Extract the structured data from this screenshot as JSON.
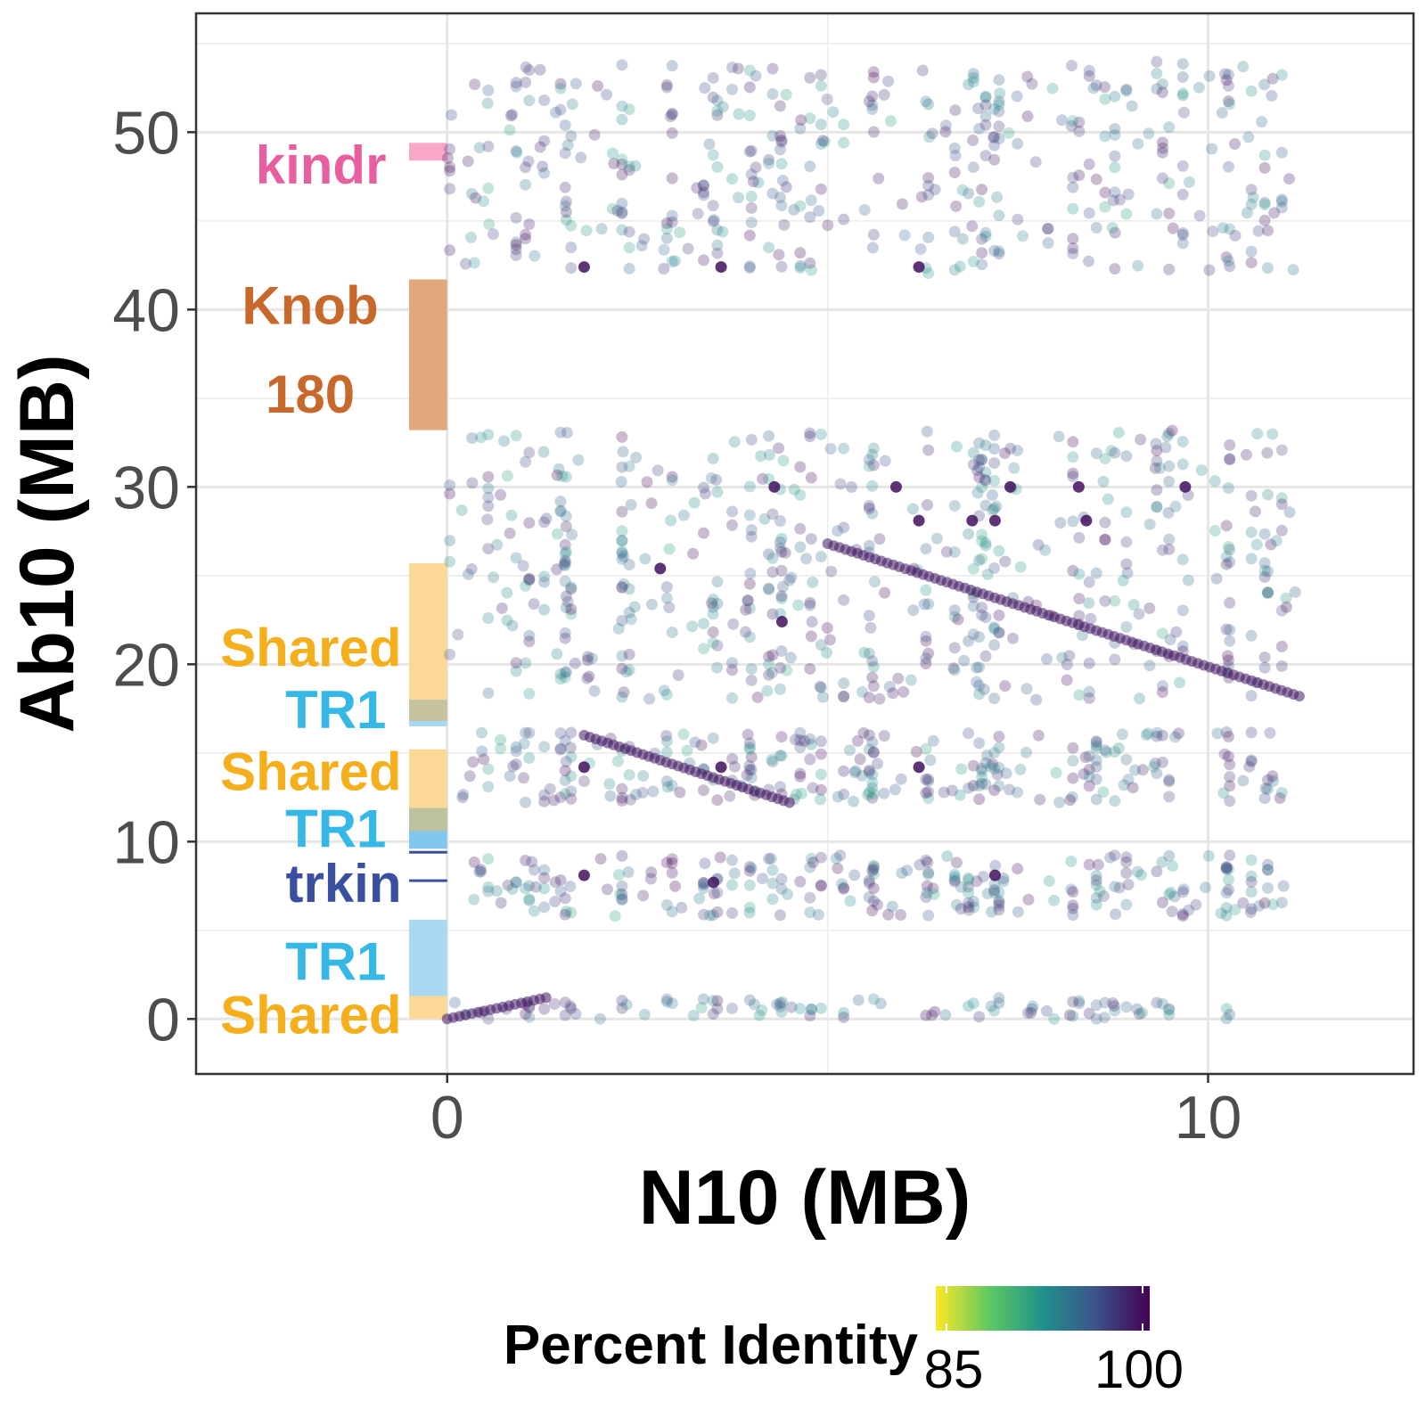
{
  "chart_data": {
    "type": "scatter",
    "title": "",
    "xlabel": "N10 (MB)",
    "ylabel": "Ab10 (MB)",
    "xlim": [
      -3.3,
      12.7
    ],
    "ylim": [
      -3.1,
      56.7
    ],
    "x_ticks": [
      0,
      10
    ],
    "x_tick_labels": [
      "0",
      "10"
    ],
    "y_ticks": [
      0,
      10,
      20,
      30,
      40,
      50
    ],
    "y_tick_labels": [
      "0",
      "10",
      "20",
      "30",
      "40",
      "50"
    ],
    "grid": true,
    "point_alpha": 0.28,
    "regions": [
      {
        "label": "kindr",
        "ymin": 48.4,
        "ymax": 49.4,
        "color": "#f7a8c8",
        "label_color": "#e85fa0"
      },
      {
        "label": "Knob 180",
        "label_lines": [
          "Knob",
          "180"
        ],
        "ymin": 33.2,
        "ymax": 41.7,
        "color": "#e3a77d",
        "label_color": "#c8692b"
      },
      {
        "label": "Shared",
        "ymin": 18.0,
        "ymax": 25.7,
        "color": "#fbd896",
        "label_color": "#f5ae1c"
      },
      {
        "label": "TR1",
        "ymin": 16.5,
        "ymax": 18.0,
        "color": "#a9d8f3",
        "label_color": "#35b8e6",
        "overlap_top": 1.2
      },
      {
        "label": "Shared",
        "ymin": 10.6,
        "ymax": 15.2,
        "color": "#fbd896",
        "label_color": "#f5ae1c"
      },
      {
        "label": "TR1",
        "ymin": 9.6,
        "ymax": 11.9,
        "color": "#80c8ee",
        "label_color": "#35b8e6",
        "overlap_top": 1.3
      },
      {
        "label": "trkin",
        "ymin": 7.8,
        "ymax": 9.4,
        "color": "#3a4f9f",
        "label_color": "#3a4f9f",
        "style": "lines"
      },
      {
        "label": "TR1",
        "ymin": 1.3,
        "ymax": 5.6,
        "color": "#a9d8f3",
        "label_color": "#35b8e6"
      },
      {
        "label": "Shared",
        "ymin": 0.0,
        "ymax": 1.3,
        "color": "#fbd896",
        "label_color": "#f5ae1c"
      }
    ],
    "clouds": [
      {
        "ymin": 42.0,
        "ymax": 54.0,
        "xmin": 0.0,
        "xmax": 11.2,
        "count": 430
      },
      {
        "ymin": 18.0,
        "ymax": 33.2,
        "xmin": 0.0,
        "xmax": 11.2,
        "count": 560
      },
      {
        "ymin": 12.2,
        "ymax": 16.2,
        "xmin": 0.2,
        "xmax": 11.1,
        "count": 270
      },
      {
        "ymin": 5.8,
        "ymax": 9.3,
        "xmin": 0.2,
        "xmax": 11.1,
        "count": 250
      },
      {
        "ymin": 0.0,
        "ymax": 1.2,
        "xmin": 0.0,
        "xmax": 10.5,
        "count": 95
      }
    ],
    "alignment_lines": [
      {
        "x": [
          0.0,
          1.3
        ],
        "y": [
          0.0,
          1.2
        ],
        "identity": 99.5
      },
      {
        "x": [
          1.8,
          4.5
        ],
        "y": [
          16.0,
          12.2
        ],
        "identity": 99.5
      },
      {
        "x": [
          5.0,
          11.2
        ],
        "y": [
          26.8,
          18.2
        ],
        "identity": 99.5
      }
    ],
    "highlight_points": [
      {
        "x": 1.8,
        "y": 42.4
      },
      {
        "x": 3.6,
        "y": 42.4
      },
      {
        "x": 6.2,
        "y": 42.4
      },
      {
        "x": 4.3,
        "y": 30.0
      },
      {
        "x": 5.9,
        "y": 30.0
      },
      {
        "x": 7.4,
        "y": 30.0
      },
      {
        "x": 8.3,
        "y": 30.0
      },
      {
        "x": 9.7,
        "y": 30.0
      },
      {
        "x": 6.2,
        "y": 28.1
      },
      {
        "x": 6.9,
        "y": 28.1
      },
      {
        "x": 7.2,
        "y": 28.1
      },
      {
        "x": 8.4,
        "y": 28.1
      },
      {
        "x": 2.8,
        "y": 25.4
      },
      {
        "x": 4.4,
        "y": 22.4
      },
      {
        "x": 6.2,
        "y": 14.2
      },
      {
        "x": 1.8,
        "y": 14.2
      },
      {
        "x": 3.6,
        "y": 14.2
      },
      {
        "x": 1.8,
        "y": 8.1
      },
      {
        "x": 3.5,
        "y": 7.7
      },
      {
        "x": 7.2,
        "y": 8.1
      }
    ],
    "legend": {
      "title": "Percent Identity",
      "placement": "bottom",
      "min": 85,
      "max": 100,
      "tick_labels": [
        "85",
        "100"
      ],
      "colors": [
        "#fde725",
        "#5ec962",
        "#21918c",
        "#3b528b",
        "#440154"
      ]
    }
  }
}
